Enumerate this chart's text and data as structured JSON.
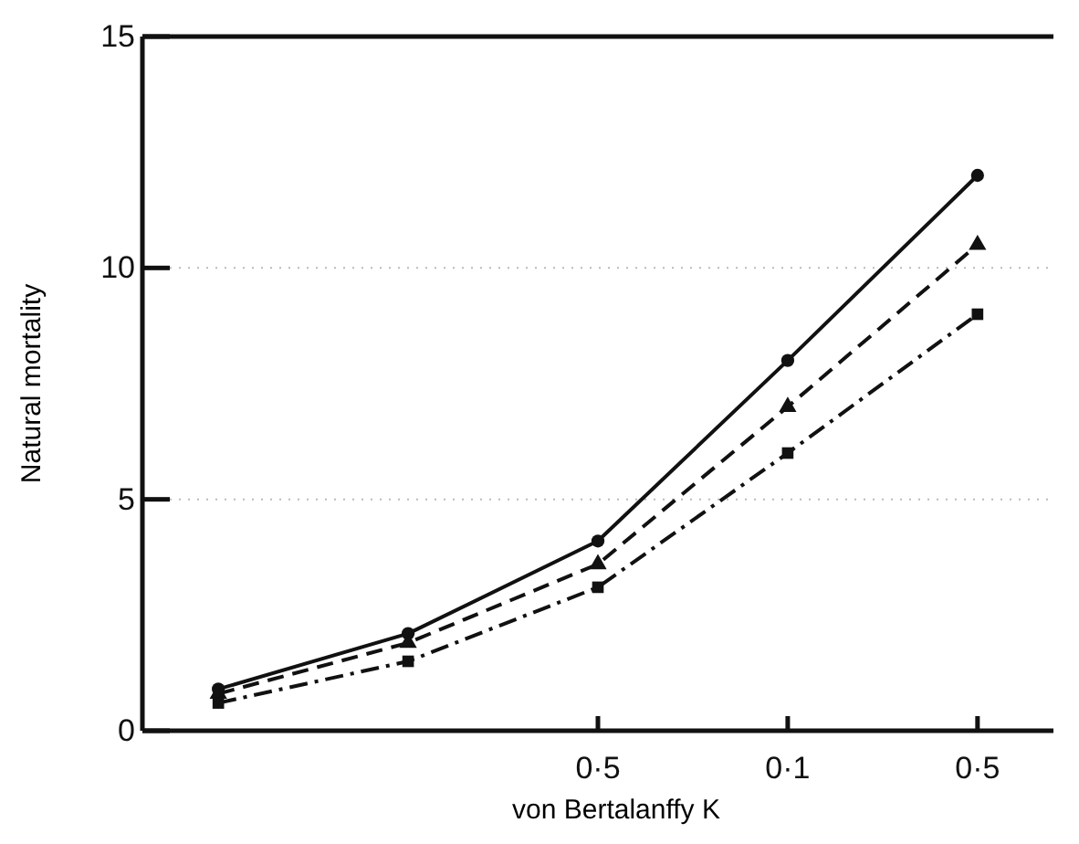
{
  "chart_data": {
    "type": "line",
    "xlabel": "von Bertalanffy K",
    "ylabel": "Natural mortality",
    "categories": [
      null,
      null,
      "0·5",
      "0·1",
      "0·5"
    ],
    "ylim": [
      0,
      15
    ],
    "yticks": [
      0,
      5,
      10,
      15
    ],
    "grid": "y",
    "series": [
      {
        "color": "#111111",
        "marker": "circle",
        "line_style": "solid",
        "values": [
          0.9,
          2.1,
          4.1,
          8.0,
          12.0
        ]
      },
      {
        "color": "#111111",
        "marker": "triangle",
        "line_style": "dashed",
        "values": [
          0.8,
          1.9,
          3.6,
          7.0,
          10.5
        ]
      },
      {
        "color": "#111111",
        "marker": "square",
        "line_style": "dashdot",
        "values": [
          0.6,
          1.5,
          3.1,
          6.0,
          9.0
        ]
      }
    ]
  }
}
